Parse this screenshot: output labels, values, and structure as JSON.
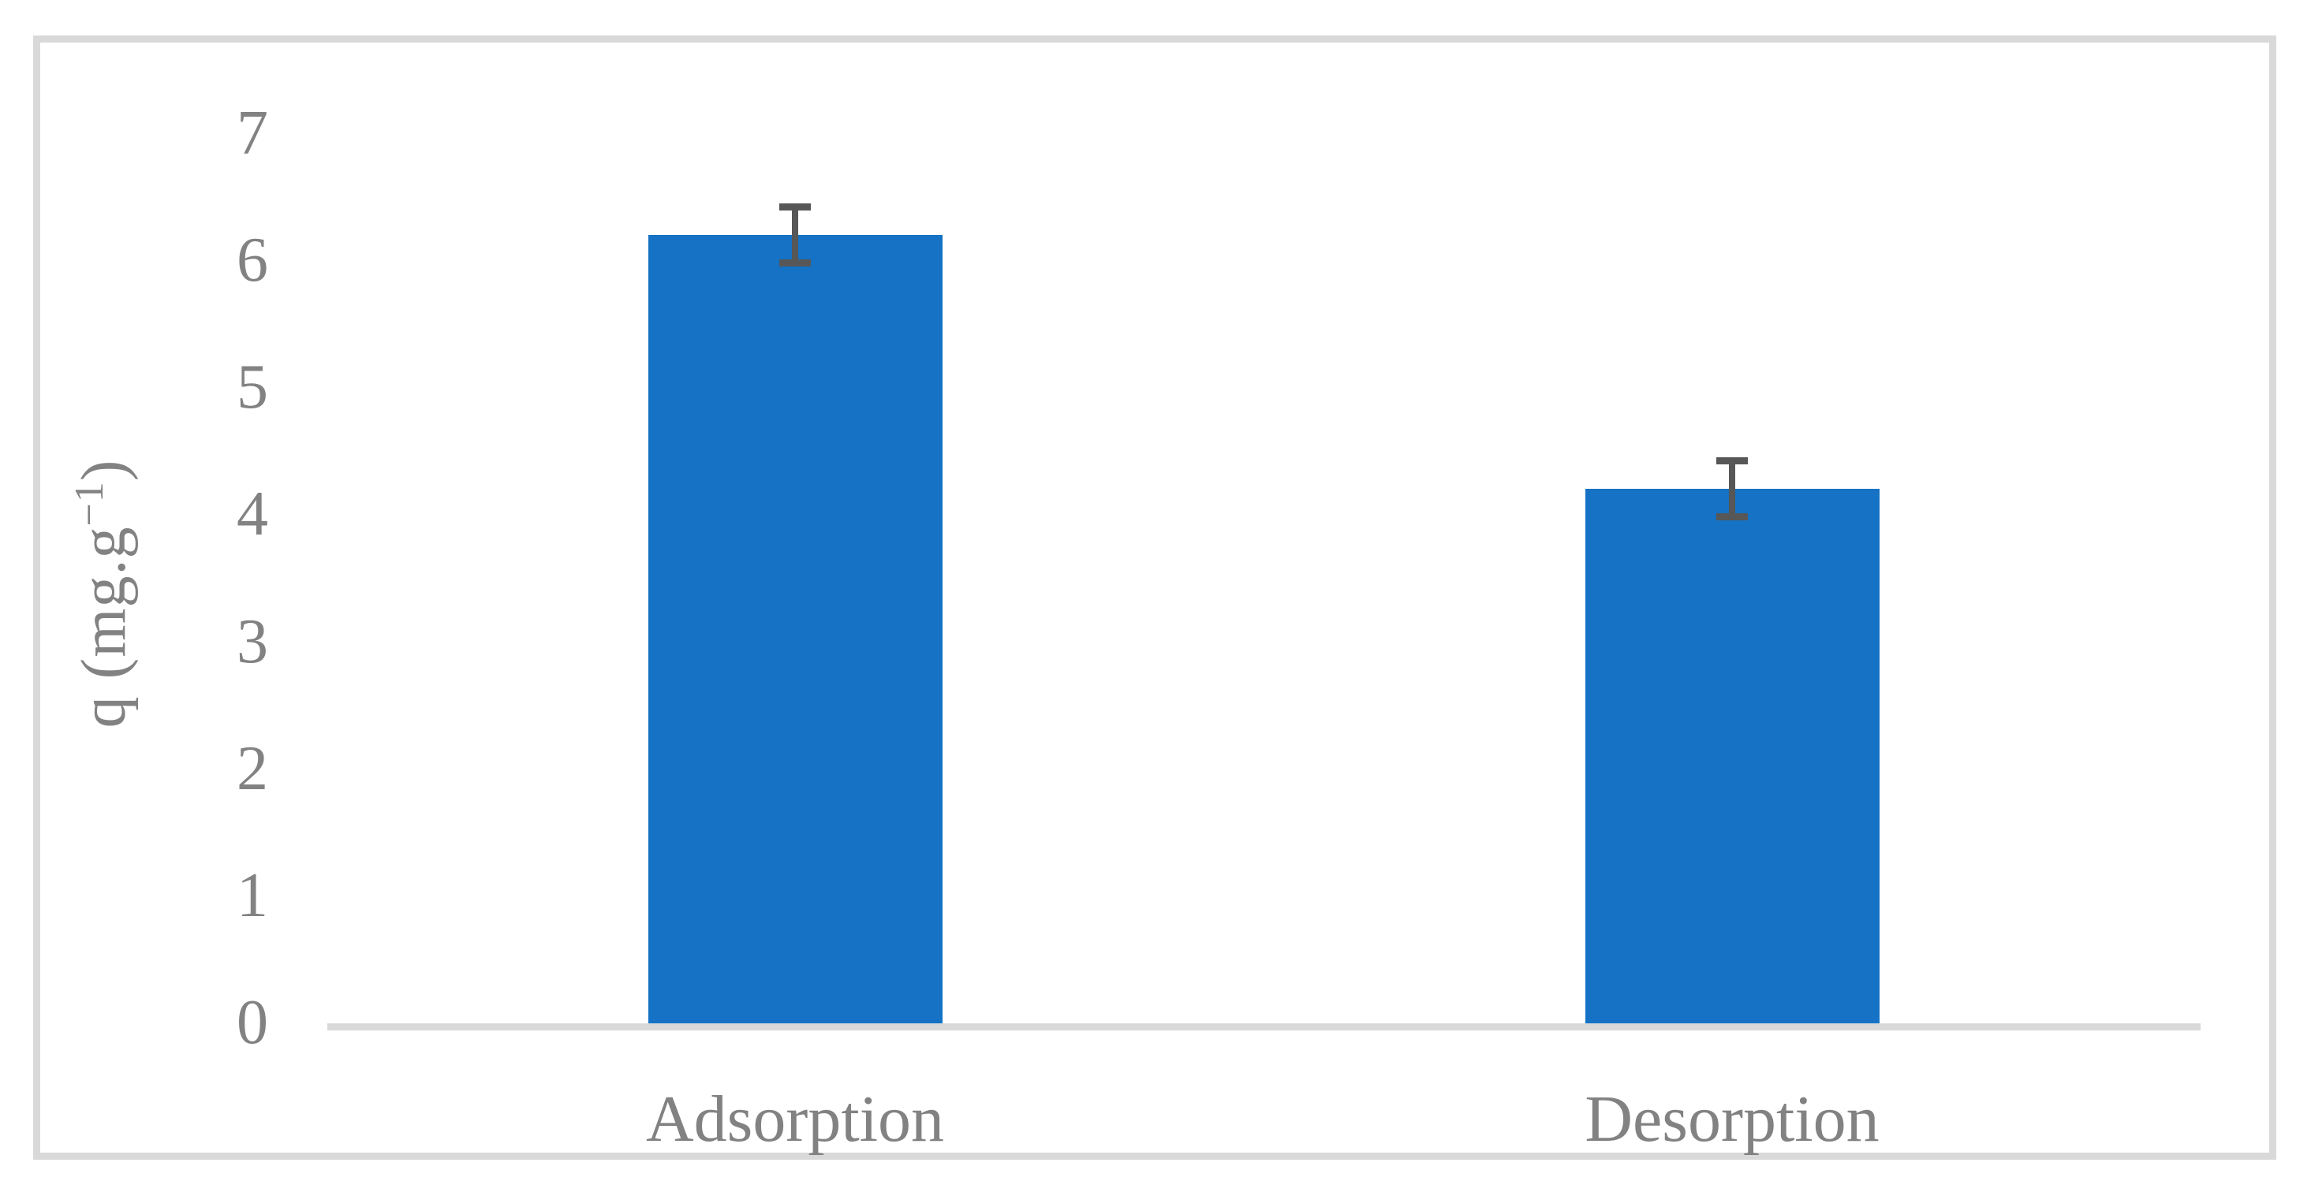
{
  "figure": {
    "background": "#FFFFFF",
    "border_color": "#D9D9D9"
  },
  "chart_data": {
    "type": "bar",
    "title": "",
    "categories": [
      "Adsorption",
      "Desorption"
    ],
    "values": [
      6.2,
      4.2
    ],
    "error_bars": [
      0.25,
      0.25
    ],
    "xlabel": "",
    "ylabel": "q (mg.g−1)",
    "ylabel_parts": {
      "prefix": "q (mg.g",
      "superscript": "−1",
      "suffix": ")"
    },
    "ylim": [
      0,
      7
    ],
    "yticks": [
      "0",
      "1",
      "2",
      "3",
      "4",
      "5",
      "6",
      "7"
    ],
    "grid": false,
    "legend_position": "none",
    "bar_color": "#1572C4",
    "error_bar_color": "#575757",
    "axis_line_color": "#D9D9D9",
    "text_color": "#828282"
  }
}
